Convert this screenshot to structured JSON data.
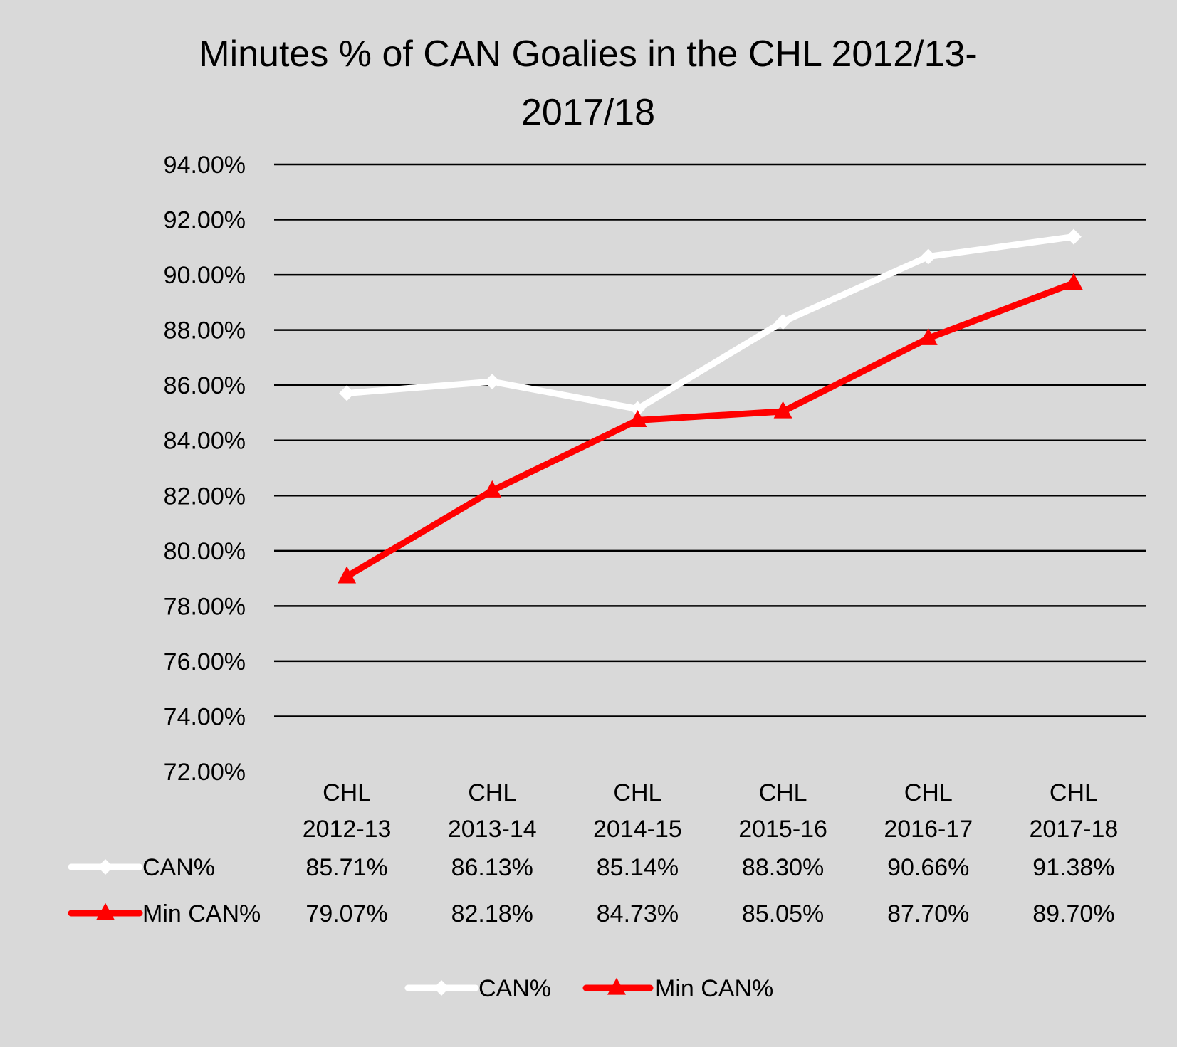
{
  "chart_data": {
    "type": "line",
    "title_lines": [
      "Minutes % of  CAN Goalies in the CHL 2012/13-",
      "2017/18"
    ],
    "categories": [
      [
        "CHL",
        "2012-13"
      ],
      [
        "CHL",
        "2013-14"
      ],
      [
        "CHL",
        "2014-15"
      ],
      [
        "CHL",
        "2015-16"
      ],
      [
        "CHL",
        "2016-17"
      ],
      [
        "CHL",
        "2017-18"
      ]
    ],
    "ylim": [
      72,
      94
    ],
    "ytick_step": 2,
    "ytick_labels": [
      "72.00%",
      "74.00%",
      "76.00%",
      "78.00%",
      "80.00%",
      "82.00%",
      "84.00%",
      "86.00%",
      "88.00%",
      "90.00%",
      "92.00%",
      "94.00%"
    ],
    "grid": true,
    "legend_position": "bottom",
    "data_table": true,
    "series": [
      {
        "name": "CAN%",
        "color": "#ffffff",
        "marker": "diamond",
        "values": [
          85.71,
          86.13,
          85.14,
          88.3,
          90.66,
          91.38
        ],
        "value_labels": [
          "85.71%",
          "86.13%",
          "85.14%",
          "88.30%",
          "90.66%",
          "91.38%"
        ]
      },
      {
        "name": "Min CAN%",
        "color": "#ff0000",
        "marker": "triangle",
        "values": [
          79.07,
          82.18,
          84.73,
          85.05,
          87.7,
          89.7
        ],
        "value_labels": [
          "79.07%",
          "82.18%",
          "84.73%",
          "85.05%",
          "87.70%",
          "89.70%"
        ]
      }
    ]
  }
}
